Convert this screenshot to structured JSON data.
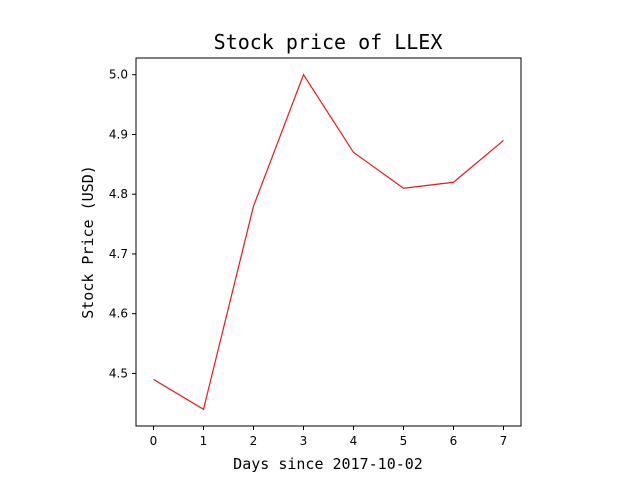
{
  "chart_data": {
    "type": "line",
    "title": "Stock price of LLEX",
    "xlabel": "Days since 2017-10-02",
    "ylabel": "Stock Price (USD)",
    "x": [
      0,
      1,
      2,
      3,
      4,
      5,
      6,
      7
    ],
    "series": [
      {
        "values": [
          4.49,
          4.44,
          4.78,
          5.0,
          4.87,
          4.81,
          4.82,
          4.89
        ],
        "color": "#e41a1c"
      }
    ],
    "xticks": [
      "0",
      "1",
      "2",
      "3",
      "4",
      "5",
      "6",
      "7"
    ],
    "yticks": [
      "4.5",
      "4.6",
      "4.7",
      "4.8",
      "4.9",
      "5.0"
    ],
    "xlim": [
      -0.35,
      7.35
    ],
    "ylim": [
      4.412,
      5.028
    ],
    "grid": false,
    "legend": "none"
  }
}
